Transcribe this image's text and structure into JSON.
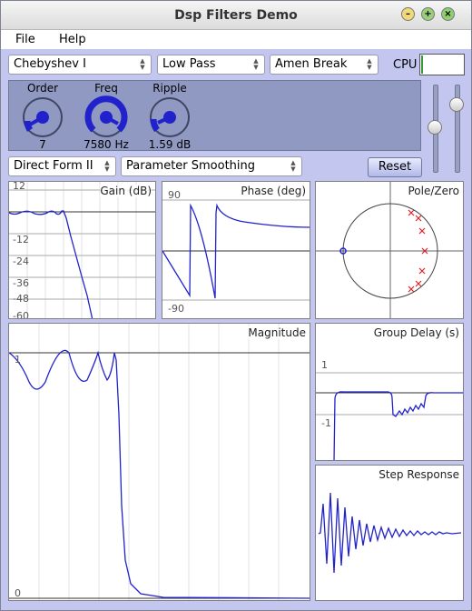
{
  "window": {
    "title": "Dsp Filters Demo"
  },
  "menu": {
    "file": "File",
    "help": "Help"
  },
  "controls": {
    "family": "Chebyshev I",
    "type": "Low Pass",
    "audio": "Amen Break",
    "cpu_label": "CPU",
    "structure": "Direct Form II",
    "smoothing": "Parameter Smoothing",
    "reset": "Reset"
  },
  "knobs": [
    {
      "label": "Order",
      "value": "7"
    },
    {
      "label": "Freq",
      "value": "7580 Hz"
    },
    {
      "label": "Ripple",
      "value": "1.59 dB"
    }
  ],
  "graphs": {
    "gain": {
      "title": "Gain (dB)",
      "ticks": [
        "12",
        "-12",
        "-24",
        "-36",
        "-48",
        "-60"
      ]
    },
    "phase": {
      "title": "Phase (deg)",
      "ticks": [
        "90",
        "-90"
      ]
    },
    "polezero": {
      "title": "Pole/Zero"
    },
    "magnitude": {
      "title": "Magnitude",
      "ticks": [
        "1",
        "0"
      ]
    },
    "groupdelay": {
      "title": "Group Delay (s)",
      "ticks": [
        "1",
        "-1"
      ]
    },
    "step": {
      "title": "Step Response"
    }
  },
  "colors": {
    "curve": "#2222cc",
    "pole": "#dd2222",
    "panel": "#8f99c2",
    "accent": "#c3c7f0"
  }
}
